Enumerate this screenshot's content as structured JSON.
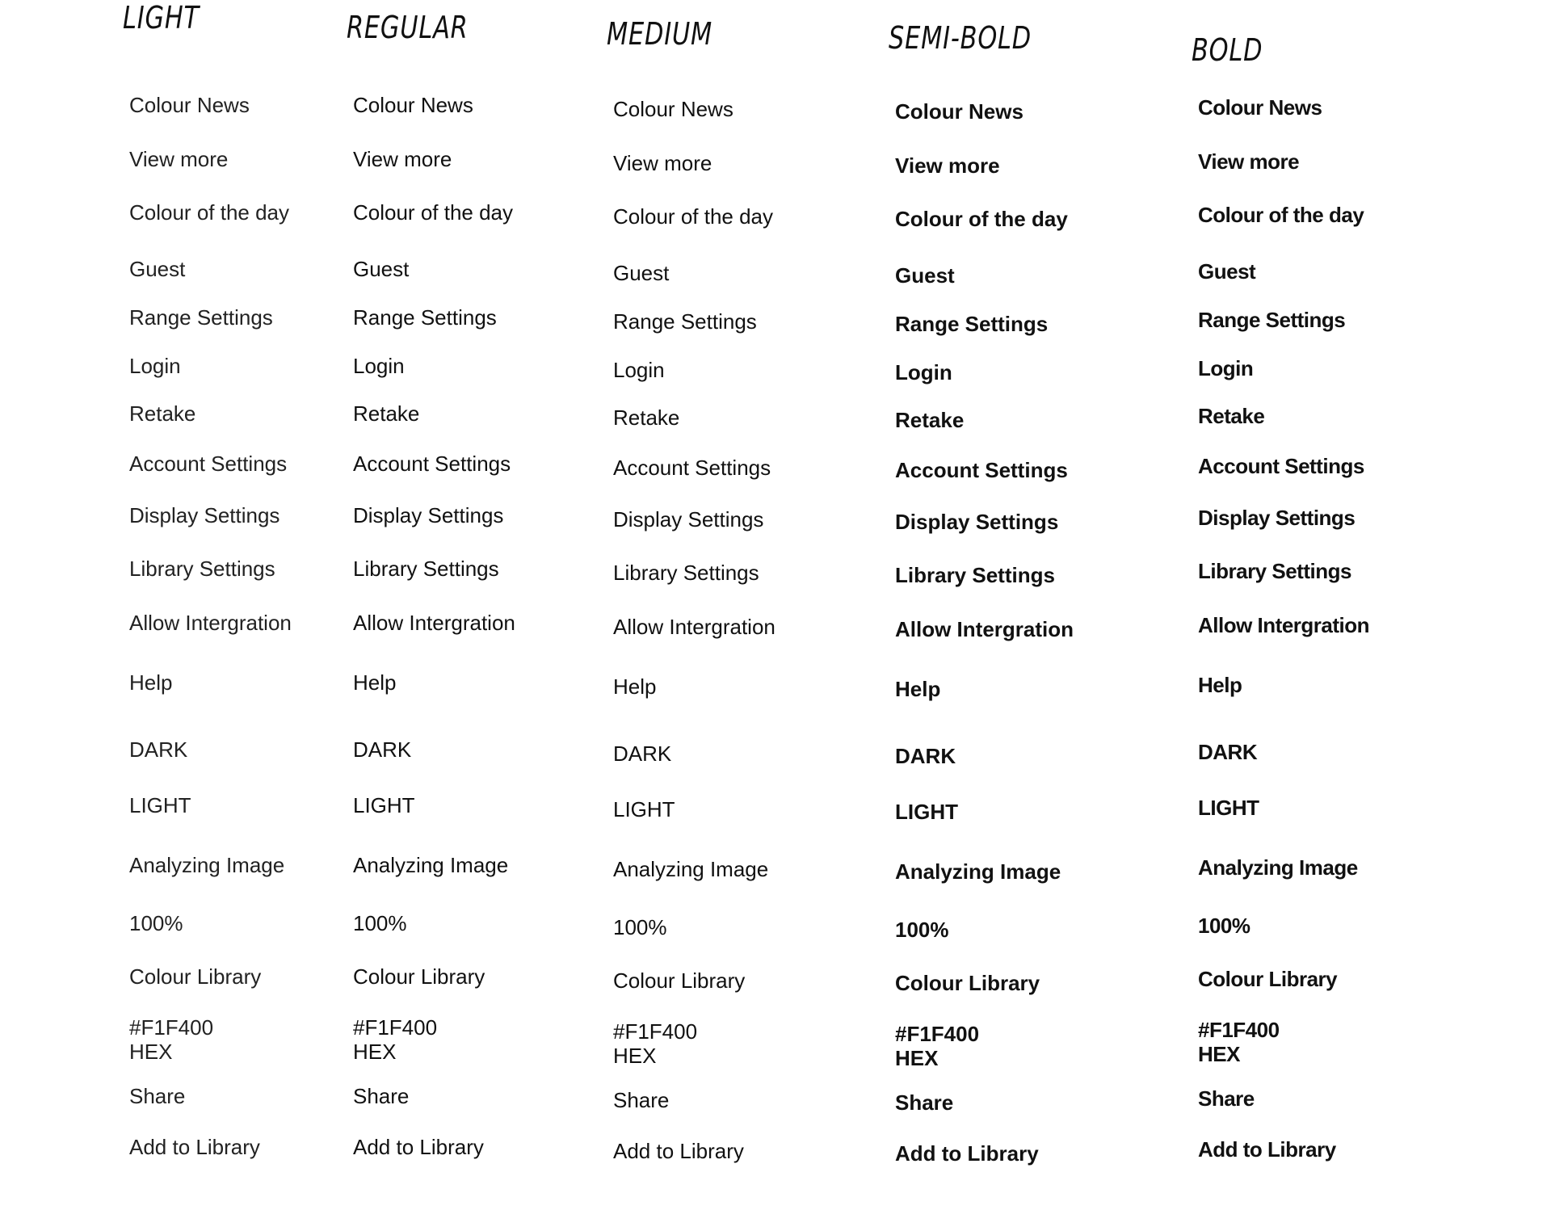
{
  "columns": [
    {
      "heading": "LIGHT",
      "weight": 300
    },
    {
      "heading": "REGULAR",
      "weight": 400
    },
    {
      "heading": "MEDIUM",
      "weight": 500
    },
    {
      "heading": "SEMI-BOLD",
      "weight": 600
    },
    {
      "heading": "BOLD",
      "weight": 700
    }
  ],
  "items": [
    "Colour News",
    "View more",
    "Colour of the day",
    "Guest",
    "Range Settings",
    "Login",
    "Retake",
    "Account Settings",
    "Display Settings",
    "Library Settings",
    "Allow Intergration",
    "Help",
    "DARK",
    "LIGHT",
    "Analyzing Image",
    "100%",
    "Colour Library",
    [
      "#F1F400",
      "HEX"
    ],
    "Share",
    "Add to Library"
  ]
}
